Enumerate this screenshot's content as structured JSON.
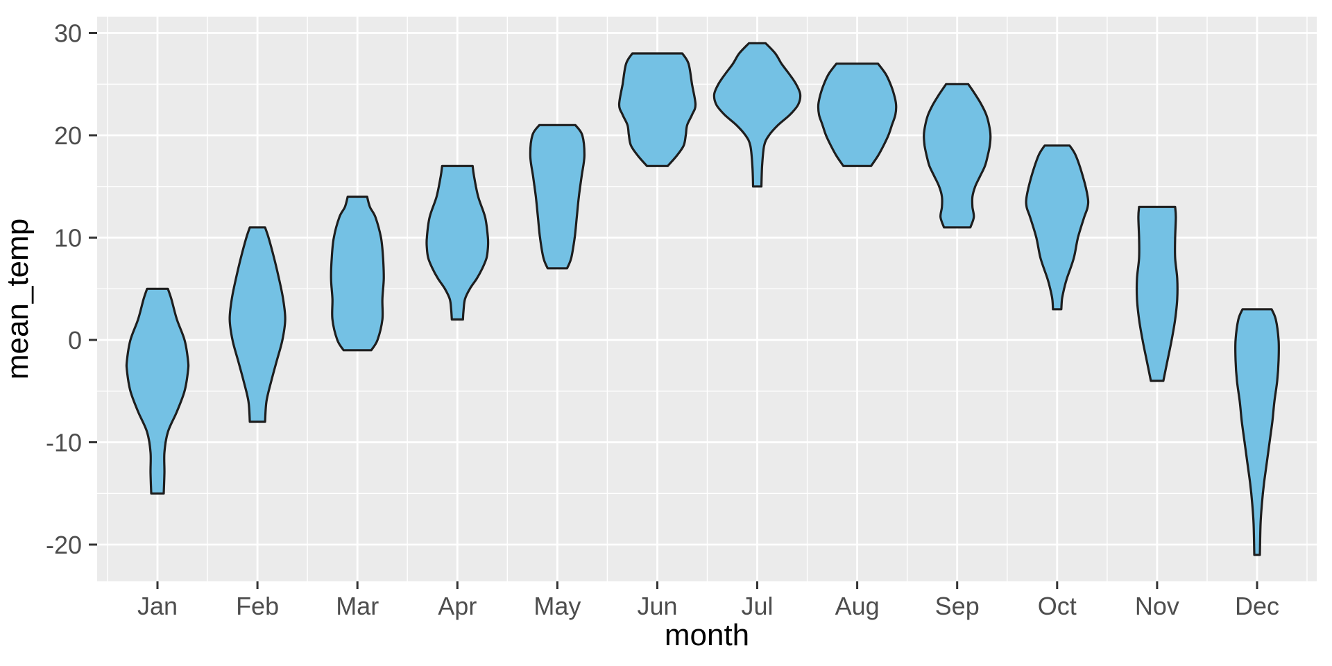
{
  "chart_data": {
    "type": "violin",
    "title": "",
    "xlabel": "month",
    "ylabel": "mean_temp",
    "categories": [
      "Jan",
      "Feb",
      "Mar",
      "Apr",
      "May",
      "Jun",
      "Jul",
      "Aug",
      "Sep",
      "Oct",
      "Nov",
      "Dec"
    ],
    "y_ticks": [
      30,
      20,
      10,
      0,
      -10,
      -20
    ],
    "y_minor_ticks": [
      25,
      15,
      5,
      -5,
      -15
    ],
    "ylim": [
      -23.5,
      31.5
    ],
    "grid": "major+minor, white on grey panel",
    "legend": "none",
    "violins": [
      {
        "month": "Jan",
        "min": -15,
        "max": 5,
        "profile": [
          [
            5,
            15
          ],
          [
            4,
            20
          ],
          [
            2,
            28
          ],
          [
            0,
            39
          ],
          [
            -2,
            44
          ],
          [
            -3,
            44
          ],
          [
            -5,
            39
          ],
          [
            -7,
            28
          ],
          [
            -9,
            15
          ],
          [
            -11,
            10
          ],
          [
            -13,
            10
          ],
          [
            -15,
            9
          ]
        ]
      },
      {
        "month": "Feb",
        "min": -8,
        "max": 11,
        "profile": [
          [
            11,
            11
          ],
          [
            10,
            16
          ],
          [
            8,
            24
          ],
          [
            6,
            31
          ],
          [
            4,
            37
          ],
          [
            2,
            40
          ],
          [
            0,
            36
          ],
          [
            -2,
            28
          ],
          [
            -4,
            20
          ],
          [
            -6,
            13
          ],
          [
            -8,
            11
          ]
        ]
      },
      {
        "month": "Mar",
        "min": -1,
        "max": 14,
        "profile": [
          [
            14,
            14
          ],
          [
            13,
            18
          ],
          [
            12,
            26
          ],
          [
            10,
            34
          ],
          [
            8,
            37
          ],
          [
            6,
            38
          ],
          [
            4,
            36
          ],
          [
            2,
            36
          ],
          [
            0,
            29
          ],
          [
            -1,
            20
          ]
        ]
      },
      {
        "month": "Apr",
        "min": 2,
        "max": 17,
        "profile": [
          [
            17,
            22
          ],
          [
            16,
            24
          ],
          [
            14,
            30
          ],
          [
            12,
            40
          ],
          [
            10,
            44
          ],
          [
            9,
            44
          ],
          [
            8,
            42
          ],
          [
            7,
            36
          ],
          [
            6,
            28
          ],
          [
            5,
            18
          ],
          [
            4,
            11
          ],
          [
            3,
            9
          ],
          [
            2,
            8
          ]
        ]
      },
      {
        "month": "May",
        "min": 7,
        "max": 21,
        "profile": [
          [
            21,
            26
          ],
          [
            20,
            36
          ],
          [
            18,
            39
          ],
          [
            16,
            35
          ],
          [
            14,
            31
          ],
          [
            12,
            28
          ],
          [
            10,
            25
          ],
          [
            8,
            20
          ],
          [
            7,
            14
          ]
        ]
      },
      {
        "month": "Jun",
        "min": 17,
        "max": 28,
        "profile": [
          [
            28,
            36
          ],
          [
            27,
            45
          ],
          [
            25,
            50
          ],
          [
            23,
            55
          ],
          [
            22,
            50
          ],
          [
            21,
            43
          ],
          [
            20,
            41
          ],
          [
            19,
            38
          ],
          [
            18,
            28
          ],
          [
            17,
            15
          ]
        ]
      },
      {
        "month": "Jul",
        "min": 15,
        "max": 29,
        "profile": [
          [
            29,
            12
          ],
          [
            28,
            26
          ],
          [
            27,
            35
          ],
          [
            26,
            46
          ],
          [
            25,
            56
          ],
          [
            24,
            62
          ],
          [
            23,
            59
          ],
          [
            22,
            47
          ],
          [
            21,
            30
          ],
          [
            20,
            17
          ],
          [
            19,
            10
          ],
          [
            17,
            7
          ],
          [
            15,
            6
          ]
        ]
      },
      {
        "month": "Aug",
        "min": 17,
        "max": 27,
        "profile": [
          [
            27,
            30
          ],
          [
            26,
            41
          ],
          [
            25,
            48
          ],
          [
            24,
            53
          ],
          [
            23,
            56
          ],
          [
            22,
            55
          ],
          [
            21,
            50
          ],
          [
            20,
            45
          ],
          [
            19,
            38
          ],
          [
            18,
            30
          ],
          [
            17,
            20
          ]
        ]
      },
      {
        "month": "Sep",
        "min": 11,
        "max": 25,
        "profile": [
          [
            25,
            16
          ],
          [
            24,
            26
          ],
          [
            23,
            35
          ],
          [
            22,
            42
          ],
          [
            21,
            46
          ],
          [
            20,
            48
          ],
          [
            19,
            47
          ],
          [
            18,
            44
          ],
          [
            17,
            40
          ],
          [
            16,
            33
          ],
          [
            15,
            26
          ],
          [
            14,
            22
          ],
          [
            13,
            22
          ],
          [
            12,
            24
          ],
          [
            11,
            19
          ]
        ]
      },
      {
        "month": "Oct",
        "min": 3,
        "max": 19,
        "profile": [
          [
            19,
            18
          ],
          [
            18,
            27
          ],
          [
            16,
            37
          ],
          [
            14,
            44
          ],
          [
            13,
            44
          ],
          [
            12,
            39
          ],
          [
            10,
            30
          ],
          [
            8,
            24
          ],
          [
            6,
            14
          ],
          [
            5,
            10
          ],
          [
            4,
            7
          ],
          [
            3,
            6
          ]
        ]
      },
      {
        "month": "Nov",
        "min": -4,
        "max": 13,
        "profile": [
          [
            13,
            26
          ],
          [
            12,
            27
          ],
          [
            10,
            26
          ],
          [
            8,
            26
          ],
          [
            6,
            29
          ],
          [
            4,
            29
          ],
          [
            2,
            26
          ],
          [
            0,
            21
          ],
          [
            -2,
            15
          ],
          [
            -4,
            9
          ]
        ]
      },
      {
        "month": "Dec",
        "min": -21,
        "max": 3,
        "profile": [
          [
            3,
            21
          ],
          [
            2,
            27
          ],
          [
            0,
            31
          ],
          [
            -2,
            31
          ],
          [
            -4,
            29
          ],
          [
            -6,
            25
          ],
          [
            -8,
            22
          ],
          [
            -10,
            18
          ],
          [
            -12,
            14
          ],
          [
            -14,
            10
          ],
          [
            -16,
            7
          ],
          [
            -18,
            5
          ],
          [
            -21,
            4
          ]
        ]
      }
    ]
  },
  "style": {
    "background": "#ffffff",
    "panel_bg": "#ebebeb",
    "grid_color": "#ffffff",
    "violin_fill": "#74c1e4",
    "violin_stroke": "#1e1e1e",
    "tick_mark_color": "#333333",
    "tick_label_color": "#4d4d4d",
    "axis_title_color": "#000000"
  }
}
